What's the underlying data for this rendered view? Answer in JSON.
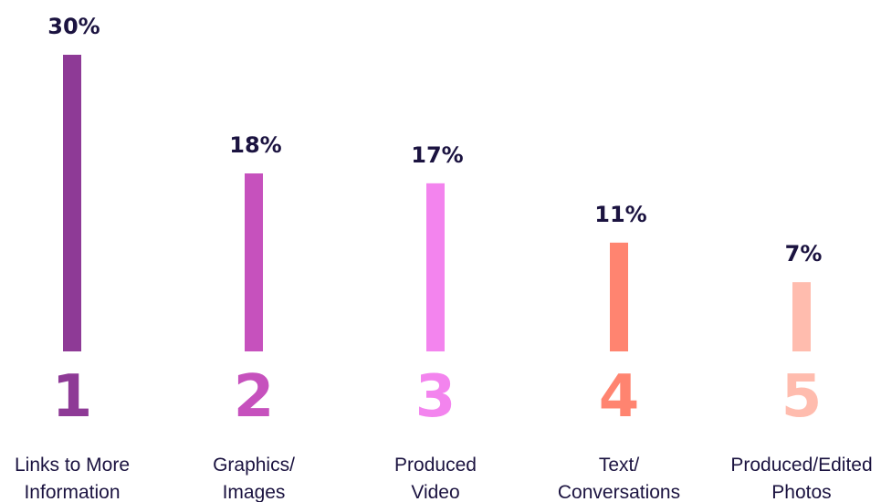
{
  "chart_data": {
    "type": "bar",
    "unit": "%",
    "ylim": [
      0,
      30
    ],
    "grid": false,
    "categories": [
      {
        "rank": "1",
        "label_lines": [
          "Links to More",
          "Information"
        ],
        "value": 30,
        "value_label": "30%",
        "color": "#8e3a96"
      },
      {
        "rank": "2",
        "label_lines": [
          "Graphics/",
          "Images"
        ],
        "value": 18,
        "value_label": "18%",
        "color": "#c651bd"
      },
      {
        "rank": "3",
        "label_lines": [
          "Produced",
          "Video"
        ],
        "value": 17,
        "value_label": "17%",
        "color": "#f384ee"
      },
      {
        "rank": "4",
        "label_lines": [
          "Text/",
          "Conversations"
        ],
        "value": 11,
        "value_label": "11%",
        "color": "#ff8470"
      },
      {
        "rank": "5",
        "label_lines": [
          "Produced/Edited",
          "Photos"
        ],
        "value": 7,
        "value_label": "7%",
        "color": "#ffbcae"
      }
    ]
  }
}
